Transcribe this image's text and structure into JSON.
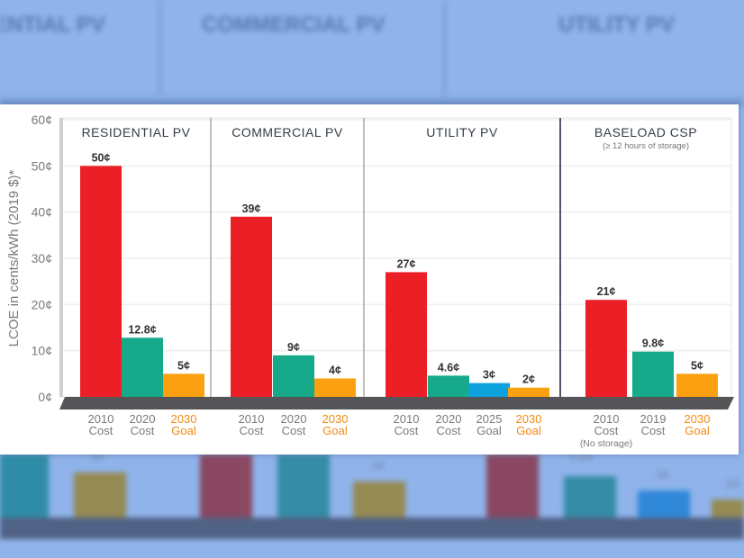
{
  "background": {
    "titles": [
      "ENTIAL PV",
      "COMMERCIAL PV",
      "UTILITY PV"
    ],
    "values": [
      "5¢",
      "4¢",
      "4.6¢",
      "3¢",
      "2¢"
    ]
  },
  "colors": {
    "cost_2010": "#ec1f27",
    "cost_recent": "#16a98a",
    "goal_2025": "#0ea2dc",
    "goal_2030": "#fba010",
    "goal_label": "#f28a13",
    "axis_text": "#7a7a7a",
    "title_text": "#333c48",
    "base": "#555558"
  },
  "chart_data": {
    "type": "bar",
    "title": "",
    "ylabel": "LCOE in cents/kWh (2019 $)*",
    "ylim": [
      0,
      60
    ],
    "yticks": [
      0,
      10,
      20,
      30,
      40,
      50,
      60
    ],
    "ytick_labels": [
      "0¢",
      "10¢",
      "20¢",
      "30¢",
      "40¢",
      "50¢",
      "60¢"
    ],
    "grid": true,
    "panels": [
      {
        "title": "RESIDENTIAL PV",
        "subtitle": "",
        "bars": [
          {
            "line1": "2010",
            "line2": "Cost",
            "line3": "",
            "value": 50,
            "label": "50¢",
            "kind": "cost_2010"
          },
          {
            "line1": "2020",
            "line2": "Cost",
            "line3": "",
            "value": 12.8,
            "label": "12.8¢",
            "kind": "cost_recent"
          },
          {
            "line1": "2030",
            "line2": "Goal",
            "line3": "",
            "value": 5,
            "label": "5¢",
            "kind": "goal_2030"
          }
        ]
      },
      {
        "title": "COMMERCIAL PV",
        "subtitle": "",
        "bars": [
          {
            "line1": "2010",
            "line2": "Cost",
            "line3": "",
            "value": 39,
            "label": "39¢",
            "kind": "cost_2010"
          },
          {
            "line1": "2020",
            "line2": "Cost",
            "line3": "",
            "value": 9,
            "label": "9¢",
            "kind": "cost_recent"
          },
          {
            "line1": "2030",
            "line2": "Goal",
            "line3": "",
            "value": 4,
            "label": "4¢",
            "kind": "goal_2030"
          }
        ]
      },
      {
        "title": "UTILITY PV",
        "subtitle": "",
        "bars": [
          {
            "line1": "2010",
            "line2": "Cost",
            "line3": "",
            "value": 27,
            "label": "27¢",
            "kind": "cost_2010"
          },
          {
            "line1": "2020",
            "line2": "Cost",
            "line3": "",
            "value": 4.6,
            "label": "4.6¢",
            "kind": "cost_recent"
          },
          {
            "line1": "2025",
            "line2": "Goal",
            "line3": "",
            "value": 3,
            "label": "3¢",
            "kind": "goal_2025"
          },
          {
            "line1": "2030",
            "line2": "Goal",
            "line3": "",
            "value": 2,
            "label": "2¢",
            "kind": "goal_2030"
          }
        ]
      },
      {
        "title": "BASELOAD CSP",
        "subtitle": "(≥ 12 hours of storage)",
        "bars": [
          {
            "line1": "2010",
            "line2": "Cost",
            "line3": "(No storage)",
            "value": 21,
            "label": "21¢",
            "kind": "cost_2010"
          },
          {
            "line1": "2019",
            "line2": "Cost",
            "line3": "",
            "value": 9.8,
            "label": "9.8¢",
            "kind": "cost_recent"
          },
          {
            "line1": "2030",
            "line2": "Goal",
            "line3": "",
            "value": 5,
            "label": "5¢",
            "kind": "goal_2030"
          }
        ]
      }
    ]
  }
}
